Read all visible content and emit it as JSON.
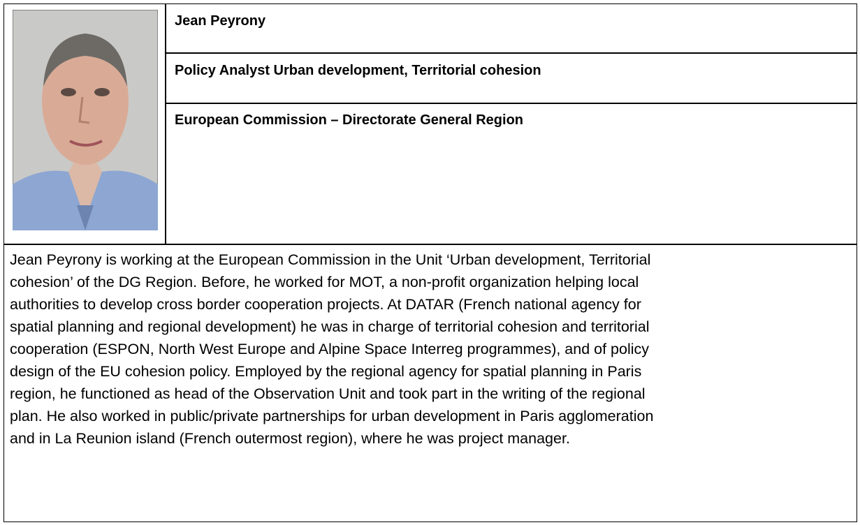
{
  "profile": {
    "name": "Jean Peyrony",
    "position": "Policy Analyst Urban development, Territorial cohesion",
    "organization": "European Commission – Directorate General Region",
    "bio_lines": [
      "Jean Peyrony is working at the European Commission in the Unit ‘Urban development, Territorial",
      "cohesion’ of the DG Region. Before, he worked for MOT, a non-profit organization helping local",
      "authorities to develop cross border cooperation projects. At DATAR (French national agency for",
      "spatial planning and regional development) he was in charge of territorial cohesion and territorial",
      "cooperation (ESPON, North West Europe and Alpine Space Interreg programmes), and of policy",
      "design of the EU cohesion policy. Employed by the regional agency for spatial planning in Paris",
      "region, he functioned as head of the Observation Unit and took part in the writing of the regional",
      "plan. He also worked in public/private partnerships for urban development in Paris agglomeration",
      "and in La Reunion island (French outermost region), where he was project manager."
    ]
  }
}
